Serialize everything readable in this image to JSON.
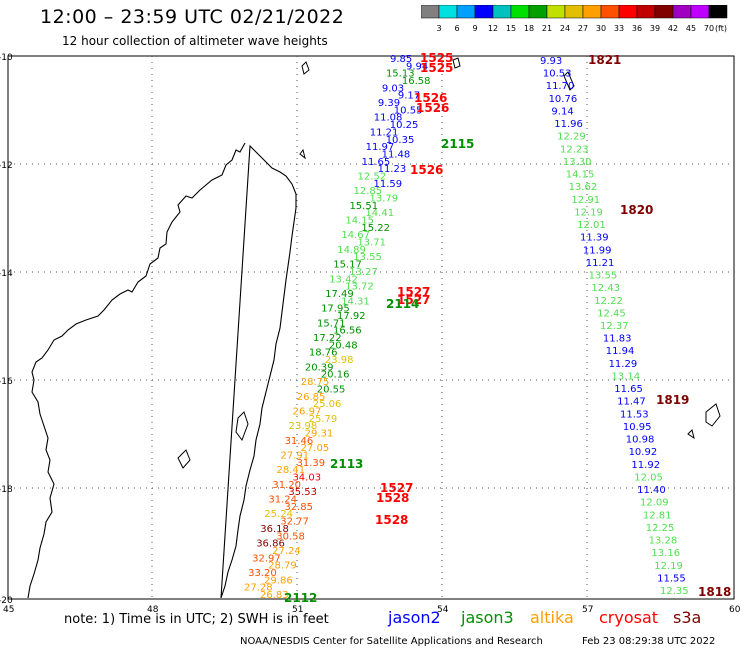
{
  "title": "12:00 – 23:59 UTC 02/21/2022",
  "subtitle": "12 hour collection of altimeter wave heights",
  "legend": {
    "colors": [
      "#808080",
      "#00e0e0",
      "#00a0ff",
      "#0000ff",
      "#00c0c0",
      "#00e000",
      "#00a000",
      "#c0e000",
      "#e0c000",
      "#ffa000",
      "#ff5000",
      "#ff0000",
      "#c00000",
      "#800000",
      "#a000c0",
      "#c000ff",
      "#000000"
    ],
    "ticks": [
      "3",
      "6",
      "9",
      "12",
      "15",
      "18",
      "21",
      "24",
      "27",
      "30",
      "33",
      "36",
      "39",
      "42",
      "45",
      "70"
    ],
    "unit": "(ft)"
  },
  "axes": {
    "lat_labels": [
      "-10",
      "-12",
      "-14",
      "-16",
      "-18",
      "-20"
    ],
    "lon_labels": [
      "45",
      "48",
      "51",
      "54",
      "57",
      "60"
    ]
  },
  "note": "note: 1) Time is in UTC; 2) SWH is in feet",
  "satellites": [
    {
      "name": "jason2",
      "color": "#0000ff"
    },
    {
      "name": "jason3",
      "color": "#009000"
    },
    {
      "name": "altika",
      "color": "#ffa000"
    },
    {
      "name": "cryosat",
      "color": "#ff0000"
    },
    {
      "name": "s3a",
      "color": "#800000"
    }
  ],
  "footer": "NOAA/NESDIS Center for Satellite Applications and Research",
  "footer_date": "Feb 23 08:29:38 UTC 2022",
  "times": [
    {
      "text": "1525",
      "color": "#ff0000"
    },
    {
      "text": "1525",
      "color": "#ff0000"
    },
    {
      "text": "1526",
      "color": "#ff0000"
    },
    {
      "text": "1526",
      "color": "#ff0000"
    },
    {
      "text": "1526",
      "color": "#ff0000"
    },
    {
      "text": "2115",
      "color": "#009000"
    },
    {
      "text": "1527",
      "color": "#ff0000"
    },
    {
      "text": "1527",
      "color": "#ff0000"
    },
    {
      "text": "2114",
      "color": "#009000"
    },
    {
      "text": "2113",
      "color": "#009000"
    },
    {
      "text": "1527",
      "color": "#ff0000"
    },
    {
      "text": "1528",
      "color": "#ff0000"
    },
    {
      "text": "1528",
      "color": "#ff0000"
    },
    {
      "text": "2112",
      "color": "#009000"
    },
    {
      "text": "1821",
      "color": "#800000"
    },
    {
      "text": "1820",
      "color": "#800000"
    },
    {
      "text": "1819",
      "color": "#800000"
    },
    {
      "text": "1818",
      "color": "#800000"
    }
  ],
  "track_a": [
    {
      "v": "9.85",
      "c": "#0000ff"
    },
    {
      "v": "9.94",
      "c": "#0000ff"
    },
    {
      "v": "15.13",
      "c": "#009000"
    },
    {
      "v": "16.58",
      "c": "#009000"
    },
    {
      "v": "9.03",
      "c": "#0000ff"
    },
    {
      "v": "9.17",
      "c": "#0000ff"
    },
    {
      "v": "9.39",
      "c": "#0000ff"
    },
    {
      "v": "10.55",
      "c": "#0000ff"
    },
    {
      "v": "11.08",
      "c": "#0000ff"
    },
    {
      "v": "10.25",
      "c": "#0000ff"
    },
    {
      "v": "11.21",
      "c": "#0000ff"
    },
    {
      "v": "10.35",
      "c": "#0000ff"
    },
    {
      "v": "11.97",
      "c": "#0000ff"
    },
    {
      "v": "11.48",
      "c": "#0000ff"
    },
    {
      "v": "11.65",
      "c": "#0000ff"
    },
    {
      "v": "11.23",
      "c": "#0000ff"
    },
    {
      "v": "12.52",
      "c": "#50e050"
    },
    {
      "v": "11.59",
      "c": "#0000ff"
    },
    {
      "v": "12.85",
      "c": "#50e050"
    },
    {
      "v": "13.79",
      "c": "#50e050"
    },
    {
      "v": "15.51",
      "c": "#009000"
    },
    {
      "v": "14.41",
      "c": "#50e050"
    },
    {
      "v": "14.15",
      "c": "#50e050"
    },
    {
      "v": "15.22",
      "c": "#009000"
    },
    {
      "v": "14.67",
      "c": "#50e050"
    },
    {
      "v": "13.71",
      "c": "#50e050"
    },
    {
      "v": "14.89",
      "c": "#50e050"
    },
    {
      "v": "13.55",
      "c": "#50e050"
    },
    {
      "v": "15.17",
      "c": "#009000"
    },
    {
      "v": "13.27",
      "c": "#50e050"
    },
    {
      "v": "13.42",
      "c": "#50e050"
    },
    {
      "v": "13.72",
      "c": "#50e050"
    },
    {
      "v": "17.49",
      "c": "#009000"
    },
    {
      "v": "14.31",
      "c": "#50e050"
    },
    {
      "v": "17.95",
      "c": "#009000"
    },
    {
      "v": "17.92",
      "c": "#009000"
    },
    {
      "v": "15.71",
      "c": "#009000"
    },
    {
      "v": "16.56",
      "c": "#009000"
    },
    {
      "v": "17.22",
      "c": "#009000"
    },
    {
      "v": "20.48",
      "c": "#009000"
    },
    {
      "v": "18.76",
      "c": "#009000"
    },
    {
      "v": "23.98",
      "c": "#e0c000"
    },
    {
      "v": "20.39",
      "c": "#009000"
    },
    {
      "v": "20.16",
      "c": "#009000"
    },
    {
      "v": "28.75",
      "c": "#ffa000"
    },
    {
      "v": "20.55",
      "c": "#009000"
    },
    {
      "v": "26.85",
      "c": "#ffa000"
    },
    {
      "v": "25.06",
      "c": "#e0c000"
    },
    {
      "v": "26.97",
      "c": "#ffa000"
    },
    {
      "v": "25.79",
      "c": "#e0c000"
    },
    {
      "v": "23.98",
      "c": "#e0c000"
    },
    {
      "v": "29.31",
      "c": "#ffa000"
    },
    {
      "v": "31.46",
      "c": "#ff5000"
    },
    {
      "v": "27.05",
      "c": "#ffa000"
    },
    {
      "v": "27.91",
      "c": "#ffa000"
    },
    {
      "v": "31.39",
      "c": "#ff5000"
    },
    {
      "v": "28.41",
      "c": "#ffa000"
    },
    {
      "v": "34.03",
      "c": "#ff0000"
    },
    {
      "v": "31.20",
      "c": "#ff5000"
    },
    {
      "v": "35.53",
      "c": "#c00000"
    },
    {
      "v": "31.24",
      "c": "#ff5000"
    },
    {
      "v": "32.85",
      "c": "#ff5000"
    },
    {
      "v": "25.24",
      "c": "#e0c000"
    },
    {
      "v": "32.77",
      "c": "#ff5000"
    },
    {
      "v": "36.18",
      "c": "#800000"
    },
    {
      "v": "30.58",
      "c": "#ff5000"
    },
    {
      "v": "36.86",
      "c": "#800000"
    },
    {
      "v": "27.24",
      "c": "#ffa000"
    },
    {
      "v": "32.97",
      "c": "#ff5000"
    },
    {
      "v": "28.79",
      "c": "#ffa000"
    },
    {
      "v": "33.20",
      "c": "#ff5000"
    },
    {
      "v": "29.86",
      "c": "#ffa000"
    },
    {
      "v": "27.28",
      "c": "#ffa000"
    },
    {
      "v": "26.83",
      "c": "#ffa000"
    }
  ],
  "track_b": [
    {
      "v": "9.93",
      "c": "#0000ff"
    },
    {
      "v": "10.53",
      "c": "#0000ff"
    },
    {
      "v": "11.70",
      "c": "#0000ff"
    },
    {
      "v": "10.76",
      "c": "#0000ff"
    },
    {
      "v": "9.14",
      "c": "#0000ff"
    },
    {
      "v": "11.96",
      "c": "#0000ff"
    },
    {
      "v": "12.29",
      "c": "#50e050"
    },
    {
      "v": "12.23",
      "c": "#50e050"
    },
    {
      "v": "13.30",
      "c": "#50e050"
    },
    {
      "v": "14.15",
      "c": "#50e050"
    },
    {
      "v": "13.62",
      "c": "#50e050"
    },
    {
      "v": "12.91",
      "c": "#50e050"
    },
    {
      "v": "12.19",
      "c": "#50e050"
    },
    {
      "v": "12.01",
      "c": "#50e050"
    },
    {
      "v": "11.39",
      "c": "#0000ff"
    },
    {
      "v": "11.99",
      "c": "#0000ff"
    },
    {
      "v": "11.21",
      "c": "#0000ff"
    },
    {
      "v": "13.55",
      "c": "#50e050"
    },
    {
      "v": "12.43",
      "c": "#50e050"
    },
    {
      "v": "12.22",
      "c": "#50e050"
    },
    {
      "v": "12.45",
      "c": "#50e050"
    },
    {
      "v": "12.37",
      "c": "#50e050"
    },
    {
      "v": "11.83",
      "c": "#0000ff"
    },
    {
      "v": "11.94",
      "c": "#0000ff"
    },
    {
      "v": "11.29",
      "c": "#0000ff"
    },
    {
      "v": "13.14",
      "c": "#50e050"
    },
    {
      "v": "11.65",
      "c": "#0000ff"
    },
    {
      "v": "11.47",
      "c": "#0000ff"
    },
    {
      "v": "11.53",
      "c": "#0000ff"
    },
    {
      "v": "10.95",
      "c": "#0000ff"
    },
    {
      "v": "10.98",
      "c": "#0000ff"
    },
    {
      "v": "10.92",
      "c": "#0000ff"
    },
    {
      "v": "11.92",
      "c": "#0000ff"
    },
    {
      "v": "12.05",
      "c": "#50e050"
    },
    {
      "v": "11.40",
      "c": "#0000ff"
    },
    {
      "v": "12.09",
      "c": "#50e050"
    },
    {
      "v": "12.81",
      "c": "#50e050"
    },
    {
      "v": "12.25",
      "c": "#50e050"
    },
    {
      "v": "13.28",
      "c": "#50e050"
    },
    {
      "v": "13.16",
      "c": "#50e050"
    },
    {
      "v": "12.19",
      "c": "#50e050"
    },
    {
      "v": "11.55",
      "c": "#0000ff"
    },
    {
      "v": "12.35",
      "c": "#50e050"
    }
  ]
}
